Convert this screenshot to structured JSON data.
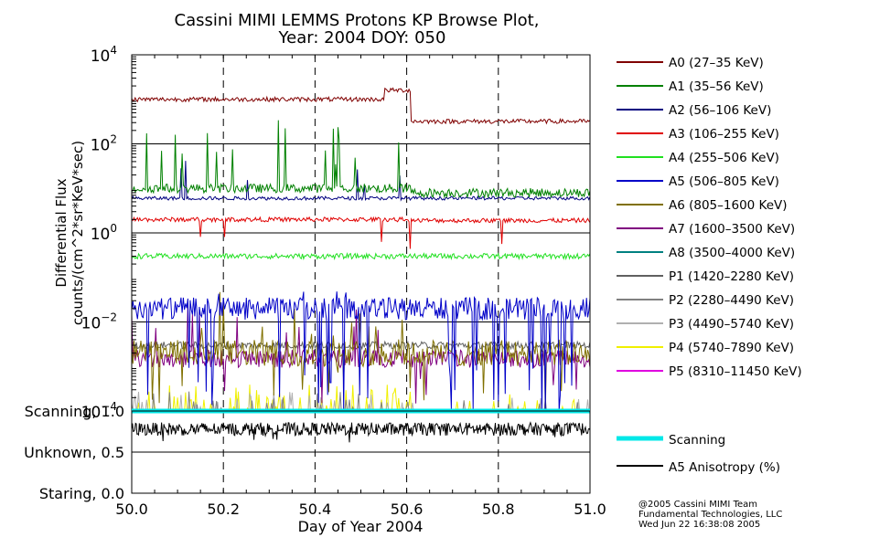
{
  "chart_data": {
    "type": "line",
    "title_line1": "Cassini MIMI LEMMS Protons KP Browse Plot,",
    "title_line2": "Year: 2004 DOY: 050",
    "xlabel": "Day of Year 2004",
    "xlim": [
      50.0,
      51.0
    ],
    "x_ticks": [
      "50.0",
      "50.2",
      "50.4",
      "50.6",
      "50.8",
      "51.0"
    ],
    "upper_panel": {
      "ylabel_line1": "Differential Flux",
      "ylabel_line2": "counts/(cm^2*sr*KeV*sec)",
      "yscale": "log",
      "ylim": [
        0.0001,
        10000
      ],
      "y_ticks": [
        {
          "value": 10000,
          "base": "10",
          "exp": "4"
        },
        {
          "value": 100,
          "base": "10",
          "exp": "2"
        },
        {
          "value": 1,
          "base": "10",
          "exp": "0"
        },
        {
          "value": 0.01,
          "base": "10",
          "exp": "−2"
        },
        {
          "value": 0.0001,
          "base": "10",
          "exp": "−4"
        }
      ]
    },
    "lower_panel": {
      "ylim": [
        0,
        1
      ],
      "y_ticks": [
        {
          "value": 1.0,
          "label": "Scanning, 1.0"
        },
        {
          "value": 0.5,
          "label": "Unknown, 0.5"
        },
        {
          "value": 0.0,
          "label": "Staring, 0.0"
        }
      ]
    },
    "series": [
      {
        "name": "A0 (27–35 KeV)",
        "color": "#800000",
        "baseline_before": 1000,
        "baseline_after": 320,
        "noise_dex": 0.05,
        "spike_prob": 0,
        "spike_dex": 0,
        "dip_prob": 0,
        "dip_dex": 0
      },
      {
        "name": "A1 (35–56 KeV)",
        "color": "#008000",
        "baseline_before": 10,
        "baseline_after": 8,
        "noise_dex": 0.1,
        "spike_prob": 0.06,
        "spike_dex": 1.0,
        "dip_prob": 0,
        "dip_dex": 0
      },
      {
        "name": "A2 (56–106 KeV)",
        "color": "#000080",
        "baseline_before": 6,
        "baseline_after": 6,
        "noise_dex": 0.04,
        "spike_prob": 0.04,
        "spike_dex": 0.6,
        "dip_prob": 0,
        "dip_dex": 0
      },
      {
        "name": "A3 (106–255 KeV)",
        "color": "#e00000",
        "baseline_before": 2,
        "baseline_after": 1.9,
        "noise_dex": 0.05,
        "spike_prob": 0,
        "spike_dex": 0,
        "dip_prob": 0.01,
        "dip_dex": 0.6
      },
      {
        "name": "A4 (255–506 KeV)",
        "color": "#20e020",
        "baseline_before": 0.3,
        "baseline_after": 0.3,
        "noise_dex": 0.06,
        "spike_prob": 0,
        "spike_dex": 0,
        "dip_prob": 0,
        "dip_dex": 0
      },
      {
        "name": "A5 (506–805 KeV)",
        "color": "#0000c8",
        "baseline_before": 0.02,
        "baseline_after": 0.02,
        "noise_dex": 0.25,
        "spike_prob": 0.02,
        "spike_dex": 0.3,
        "dip_prob": 0.07,
        "dip_dex": 2.0
      },
      {
        "name": "A6 (805–1600 KeV)",
        "color": "#807000",
        "baseline_before": 0.002,
        "baseline_after": 0.002,
        "noise_dex": 0.3,
        "spike_prob": 0.05,
        "spike_dex": 0.8,
        "dip_prob": 0.04,
        "dip_dex": 1.0
      },
      {
        "name": "A7 (1600–3500 KeV)",
        "color": "#800080",
        "baseline_before": 0.0015,
        "baseline_after": 0.0015,
        "noise_dex": 0.2,
        "spike_prob": 0.03,
        "spike_dex": 0.8,
        "dip_prob": 0.02,
        "dip_dex": 0.8
      },
      {
        "name": "A8 (3500–4000 KeV)",
        "color": "#008080",
        "baseline_before": 0.0001,
        "baseline_after": 0.0001,
        "noise_dex": 0,
        "spike_prob": 0,
        "spike_dex": 0,
        "dip_prob": 0,
        "dip_dex": 0
      },
      {
        "name": "P1 (1420–2280 KeV)",
        "color": "#606060",
        "baseline_before": 0.003,
        "baseline_after": 0.003,
        "noise_dex": 0.08,
        "spike_prob": 0,
        "spike_dex": 0,
        "dip_prob": 0,
        "dip_dex": 0
      },
      {
        "name": "P2 (2280–4490 KeV)",
        "color": "#808080",
        "baseline_before": 0.0001,
        "baseline_after": 0.0001,
        "noise_dex": 0,
        "spike_prob": 0.05,
        "spike_dex": 0.3,
        "dip_prob": 0,
        "dip_dex": 0
      },
      {
        "name": "P3 (4490–5740 KeV)",
        "color": "#b0b0b0",
        "baseline_before": 0.0001,
        "baseline_after": 0.0001,
        "noise_dex": 0,
        "spike_prob": 0.05,
        "spike_dex": 0.3,
        "dip_prob": 0,
        "dip_dex": 0
      },
      {
        "name": "P4 (5740–7890 KeV)",
        "color": "#f0f000",
        "baseline_before": 0.0001,
        "baseline_after": 0.0001,
        "noise_dex": 0,
        "spike_prob": 0.12,
        "spike_dex": 0.4,
        "dip_prob": 0,
        "dip_dex": 0
      },
      {
        "name": "P5 (8310–11450 KeV)",
        "color": "#e000e0",
        "baseline_before": 0.0001,
        "baseline_after": 0.0001,
        "noise_dex": 0,
        "spike_prob": 0,
        "spike_dex": 0,
        "dip_prob": 0,
        "dip_dex": 0
      }
    ],
    "transition_doy": 50.61,
    "scanning": {
      "name": "Scanning",
      "color": "#00e8e8",
      "value": 1.0
    },
    "anisotropy": {
      "name": "A5 Anisotropy (%)",
      "color": "#000000",
      "mean": 0.78,
      "range": [
        0.55,
        0.93
      ]
    },
    "footer": {
      "line1": "@2005 Cassini MIMI Team",
      "line2": "Fundamental Technologies, LLC",
      "line3": "Wed Jun 22 16:38:08 2005"
    }
  }
}
